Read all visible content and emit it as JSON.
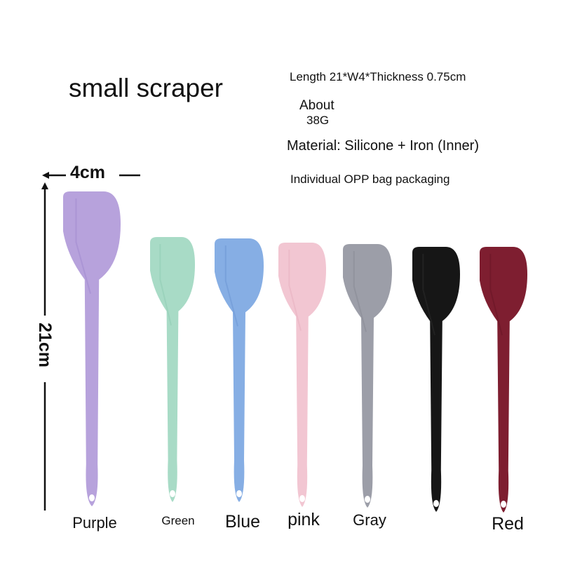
{
  "title": "small scraper",
  "specs": {
    "size": "Length 21*W4*Thickness 0.75cm",
    "weight_line1": "About",
    "weight_line2": "38G",
    "material": "Material: Silicone + Iron (Inner)",
    "packaging": "Individual OPP bag packaging"
  },
  "dimensions": {
    "width_label": "4cm",
    "height_label": "21cm"
  },
  "scrapers": [
    {
      "name": "Purple",
      "color": "#b7a2dc",
      "shade": "#a38cd0"
    },
    {
      "name": "Green",
      "color": "#a8dbc6",
      "shade": "#93cdb5"
    },
    {
      "name": "Blue",
      "color": "#86aee4",
      "shade": "#7098d6"
    },
    {
      "name": "pink",
      "color": "#f2c6d2",
      "shade": "#e8b2c1"
    },
    {
      "name": "Gray",
      "color": "#9c9ea8",
      "shade": "#8a8c96"
    },
    {
      "name": "",
      "color": "#161616",
      "shade": "#2a2a2a"
    },
    {
      "name": "Red",
      "color": "#7e1e30",
      "shade": "#6a1626"
    }
  ]
}
